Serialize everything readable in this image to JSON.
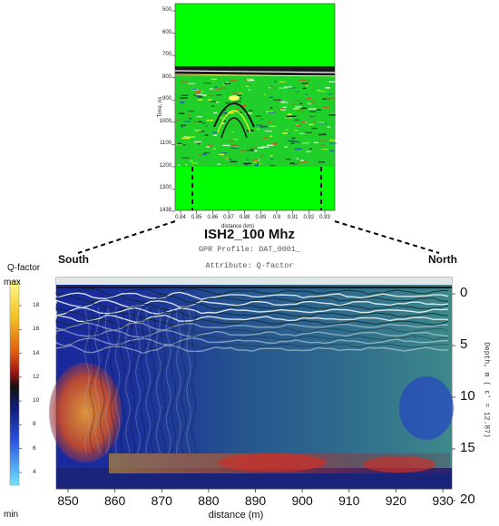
{
  "header": {
    "title": "ISH2_100 Mhz",
    "subtitle": "GPR Profile: DAT_0001_",
    "attribute": "Attribute:  Q-factor"
  },
  "directions": {
    "left": "South",
    "right": "North"
  },
  "top_panel": {
    "y_axis_label": "Time, ns",
    "y_ticks": [
      "500",
      "600",
      "700",
      "800",
      "900",
      "1000",
      "1100",
      "1200",
      "1300",
      "1438"
    ],
    "x_axis_label": "distance (km)",
    "x_ticks": [
      "0.84",
      "0.85",
      "0.86",
      "0.87",
      "0.88",
      "0.89",
      "0.9",
      "0.91",
      "0.92",
      "0.93"
    ]
  },
  "bottom_panel": {
    "x_axis_label": "distance (m)",
    "x_ticks": [
      "850",
      "860",
      "870",
      "880",
      "890",
      "900",
      "910",
      "920",
      "930"
    ],
    "depth_label": "Depth, m  ( ε' = 12.87)",
    "depth_ticks": [
      "0",
      "5",
      "10",
      "15",
      "20"
    ]
  },
  "legend": {
    "title": "Q-factor",
    "max_label": "max",
    "min_label": "min",
    "ticks": [
      "18",
      "16",
      "14",
      "12",
      "10",
      "8",
      "6",
      "4"
    ]
  },
  "colors": {
    "top_background": "#00ff00",
    "bottom_background": "#1a2a9c",
    "anomaly_red": "#c8302a"
  }
}
